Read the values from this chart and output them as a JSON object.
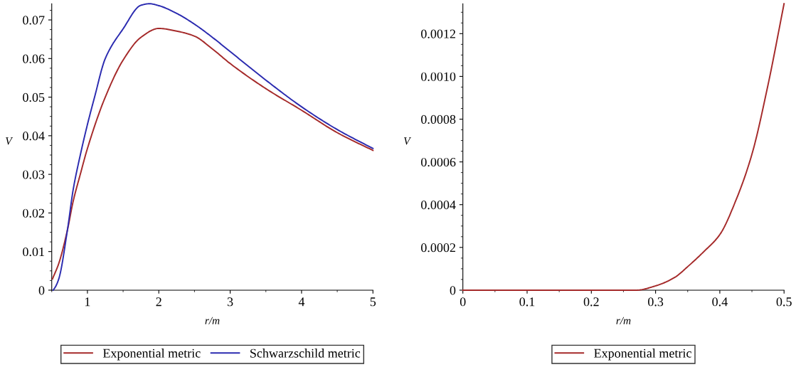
{
  "chart_data": [
    {
      "type": "line",
      "xlabel": "r/m",
      "ylabel": "V",
      "xlim": [
        0.5,
        5
      ],
      "ylim": [
        0,
        0.0742
      ],
      "xticks": [
        1,
        2,
        3,
        4,
        5
      ],
      "yticks": [
        0,
        0.01,
        0.02,
        0.03,
        0.04,
        0.05,
        0.06,
        0.07
      ],
      "legend": "bottom",
      "grid": false,
      "series": [
        {
          "name": "Exponential metric",
          "color": "#a52a2a",
          "x": [
            0.51,
            0.6,
            0.72,
            0.8,
            0.9,
            1.0,
            1.25,
            1.5,
            1.75,
            2.0,
            2.25,
            2.5,
            2.75,
            3.0,
            3.5,
            4.0,
            4.5,
            5.0
          ],
          "values": [
            0.0029,
            0.007,
            0.0156,
            0.023,
            0.03,
            0.0367,
            0.05,
            0.0596,
            0.0655,
            0.0678,
            0.0671,
            0.0658,
            0.0625,
            0.0587,
            0.0522,
            0.0466,
            0.0408,
            0.0362
          ]
        },
        {
          "name": "Schwarzschild metric",
          "color": "#2b2bb0",
          "x": [
            0.52,
            0.55,
            0.6,
            0.72,
            0.8,
            0.9,
            1.0,
            1.1,
            1.25,
            1.5,
            1.75,
            1.87,
            2.0,
            2.25,
            2.5,
            2.75,
            3.0,
            3.5,
            4.0,
            4.5,
            5.0
          ],
          "values": [
            0,
            0.0008,
            0.003,
            0.0156,
            0.026,
            0.035,
            0.0429,
            0.05,
            0.06,
            0.0677,
            0.0738,
            0.0742,
            0.0737,
            0.0717,
            0.0689,
            0.0655,
            0.0618,
            0.0544,
            0.0475,
            0.0416,
            0.0367
          ]
        }
      ]
    },
    {
      "type": "line",
      "xlabel": "r/m",
      "ylabel": "V",
      "xlim": [
        0,
        0.5
      ],
      "ylim": [
        0,
        0.00134
      ],
      "xticks": [
        0,
        0.1,
        0.2,
        0.3,
        0.4,
        0.5
      ],
      "yticks": [
        0,
        {
          "value": 0.0002,
          "label": "0.0002"
        },
        {
          "value": 0.0004,
          "label": "0.0004"
        },
        {
          "value": 0.0006,
          "label": "0.0006"
        },
        {
          "value": 0.0008,
          "label": "0.0008"
        },
        {
          "value": 0.001,
          "label": "0.0010"
        },
        {
          "value": 0.0012,
          "label": "0.0012"
        }
      ],
      "legend": "bottom",
      "grid": false,
      "series": [
        {
          "name": "Exponential metric",
          "color": "#a52a2a",
          "x": [
            0,
            0.1,
            0.2,
            0.25,
            0.27,
            0.3,
            0.33,
            0.35,
            0.375,
            0.4,
            0.425,
            0.45,
            0.475,
            0.5
          ],
          "values": [
            0,
            0,
            0,
            0,
            0,
            2e-05,
            6e-05,
            0.00011,
            0.00018,
            0.00026,
            0.00042,
            0.000636,
            0.00096,
            0.00134
          ]
        }
      ]
    }
  ]
}
